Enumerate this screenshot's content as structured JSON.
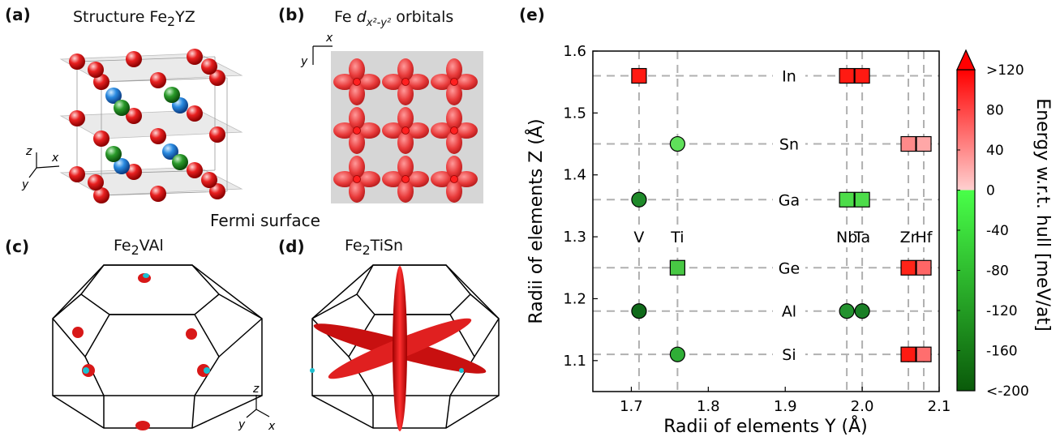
{
  "panels": {
    "a": {
      "label": "(a)",
      "title_main": "Structure Fe",
      "title_sub": "2",
      "title_end": "YZ",
      "axes": {
        "z": "z",
        "x": "x",
        "y": "y"
      }
    },
    "b": {
      "label": "(b)",
      "title_main": "Fe ",
      "title_ital": "d",
      "title_sub": "x²-y²",
      "title_end": " orbitals",
      "axes": {
        "x": "x",
        "y": "y"
      }
    },
    "fermi_title": "Fermi surface",
    "c": {
      "label": "(c)",
      "title_main": "Fe",
      "title_sub": "2",
      "title_end": "VAl"
    },
    "d": {
      "label": "(d)",
      "title_main": "Fe",
      "title_sub": "2",
      "title_end": "TiSn",
      "axes": {
        "z": "z",
        "x": "x",
        "y": "y"
      }
    },
    "e": {
      "label": "(e)"
    }
  },
  "chart_data": {
    "type": "scatter",
    "xlabel": "Radii of elements Y (Å)",
    "ylabel": "Radii of elements Z (Å)",
    "xlim": [
      1.65,
      2.1
    ],
    "ylim": [
      1.05,
      1.6
    ],
    "xticks": [
      1.7,
      1.8,
      1.9,
      2.0,
      2.1
    ],
    "yticks": [
      1.1,
      1.2,
      1.3,
      1.4,
      1.5,
      1.6
    ],
    "xtick_labels": [
      "1.7",
      "1.8",
      "1.9",
      "2.0",
      "2.1"
    ],
    "ytick_labels": [
      "1.1",
      "1.2",
      "1.3",
      "1.4",
      "1.5",
      "1.6"
    ],
    "grid": "dashed at element radii",
    "y_elements": [
      {
        "name": "V",
        "r": 1.71
      },
      {
        "name": "Ti",
        "r": 1.76
      },
      {
        "name": "Nb",
        "r": 1.98
      },
      {
        "name": "Ta",
        "r": 2.0
      },
      {
        "name": "Zr",
        "r": 2.06
      },
      {
        "name": "Hf",
        "r": 2.08
      }
    ],
    "z_elements": [
      {
        "name": "In",
        "r": 1.56
      },
      {
        "name": "Sn",
        "r": 1.45
      },
      {
        "name": "Ga",
        "r": 1.36
      },
      {
        "name": "Ge",
        "r": 1.25
      },
      {
        "name": "Al",
        "r": 1.18
      },
      {
        "name": "Si",
        "r": 1.11
      }
    ],
    "z_label_x": 1.905,
    "y_label_y": 1.3,
    "points": [
      {
        "x": 1.71,
        "y": 1.56,
        "shape": "square",
        "color": "#ff1a12"
      },
      {
        "x": 1.98,
        "y": 1.56,
        "shape": "square",
        "color": "#ff1a12"
      },
      {
        "x": 2.0,
        "y": 1.56,
        "shape": "square",
        "color": "#ff1a12"
      },
      {
        "x": 1.76,
        "y": 1.45,
        "shape": "circle",
        "color": "#5fe05a"
      },
      {
        "x": 2.06,
        "y": 1.45,
        "shape": "square",
        "color": "#ff8a8a"
      },
      {
        "x": 2.08,
        "y": 1.45,
        "shape": "square",
        "color": "#ffa7a7"
      },
      {
        "x": 1.71,
        "y": 1.36,
        "shape": "circle",
        "color": "#1f8a2a"
      },
      {
        "x": 1.98,
        "y": 1.36,
        "shape": "square",
        "color": "#4ddc4a"
      },
      {
        "x": 2.0,
        "y": 1.36,
        "shape": "square",
        "color": "#4ddc4a"
      },
      {
        "x": 1.76,
        "y": 1.25,
        "shape": "square",
        "color": "#48c844"
      },
      {
        "x": 2.06,
        "y": 1.25,
        "shape": "square",
        "color": "#ff2418"
      },
      {
        "x": 2.08,
        "y": 1.25,
        "shape": "square",
        "color": "#ff6666"
      },
      {
        "x": 1.71,
        "y": 1.18,
        "shape": "circle",
        "color": "#0f6a1a"
      },
      {
        "x": 1.98,
        "y": 1.18,
        "shape": "circle",
        "color": "#23922e"
      },
      {
        "x": 2.0,
        "y": 1.18,
        "shape": "circle",
        "color": "#1a7f26"
      },
      {
        "x": 1.76,
        "y": 1.11,
        "shape": "circle",
        "color": "#2fae36"
      },
      {
        "x": 2.06,
        "y": 1.11,
        "shape": "square",
        "color": "#ff1a12"
      },
      {
        "x": 2.08,
        "y": 1.11,
        "shape": "square",
        "color": "#ff6e6e"
      }
    ],
    "colorbar": {
      "label": "Energy w.r.t. hull [meV/at]",
      "min": -200,
      "max": 120,
      "ticks": [
        {
          "v": 120,
          "label": ">120"
        },
        {
          "v": 80,
          "label": "80"
        },
        {
          "v": 40,
          "label": "40"
        },
        {
          "v": 0,
          "label": "0"
        },
        {
          "v": -40,
          "label": "-40"
        },
        {
          "v": -80,
          "label": "-80"
        },
        {
          "v": -120,
          "label": "-120"
        },
        {
          "v": -160,
          "label": "-160"
        },
        {
          "v": -200,
          "label": "<-200"
        }
      ],
      "stops": [
        {
          "v": 120,
          "color": "#ff0000"
        },
        {
          "v": 0,
          "color": "#ffd0d0"
        },
        {
          "v": -0.01,
          "color": "#49ff49"
        },
        {
          "v": -200,
          "color": "#0a5a0a"
        }
      ]
    }
  }
}
